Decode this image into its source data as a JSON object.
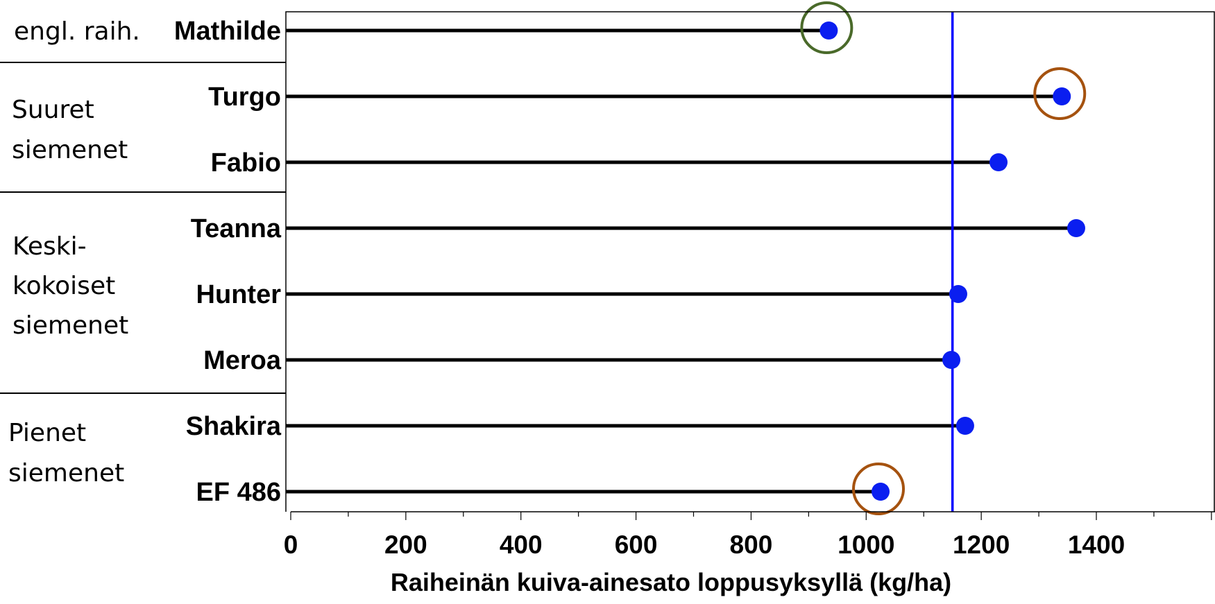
{
  "chart_data": {
    "type": "lollipop",
    "xlabel": "Raiheinän kuiva-ainesato loppusyksyllä (kg/ha)",
    "xlim": [
      0,
      1600
    ],
    "xticks": [
      "0",
      "200",
      "400",
      "600",
      "800",
      "1000",
      "1200",
      "1400"
    ],
    "reference_line": {
      "value": 1150,
      "color": "#0000ff"
    },
    "categories": [
      "Mathilde",
      "Turgo",
      "Fabio",
      "Teanna",
      "Hunter",
      "Meroa",
      "Shakira",
      "EF 486"
    ],
    "values": [
      935,
      1340,
      1230,
      1365,
      1160,
      1148,
      1172,
      1025
    ],
    "highlighted": [
      {
        "category": "Mathilde",
        "color": "#4a6a2a"
      },
      {
        "category": "Turgo",
        "color": "#a5520f"
      },
      {
        "category": "EF 486",
        "color": "#a5520f"
      }
    ],
    "groups": [
      {
        "label": "engl. raih.",
        "lines": [
          "engl. raih."
        ],
        "members": [
          "Mathilde"
        ]
      },
      {
        "label": "Suuret siemenet",
        "lines": [
          "Suuret",
          "siemenet"
        ],
        "members": [
          "Turgo",
          "Fabio"
        ]
      },
      {
        "label": "Keski-kokoiset siemenet",
        "lines": [
          "Keski-",
          "kokoiset",
          "siemenet"
        ],
        "members": [
          "Teanna",
          "Hunter",
          "Meroa"
        ]
      },
      {
        "label": "Pienet siemenet",
        "lines": [
          "Pienet",
          "siemenet"
        ],
        "members": [
          "Shakira",
          "EF 486"
        ]
      }
    ],
    "colors": {
      "stem": "#000000",
      "dot": "#0a1ef0",
      "axis": "#000000"
    },
    "grid": false,
    "legend": "none"
  }
}
